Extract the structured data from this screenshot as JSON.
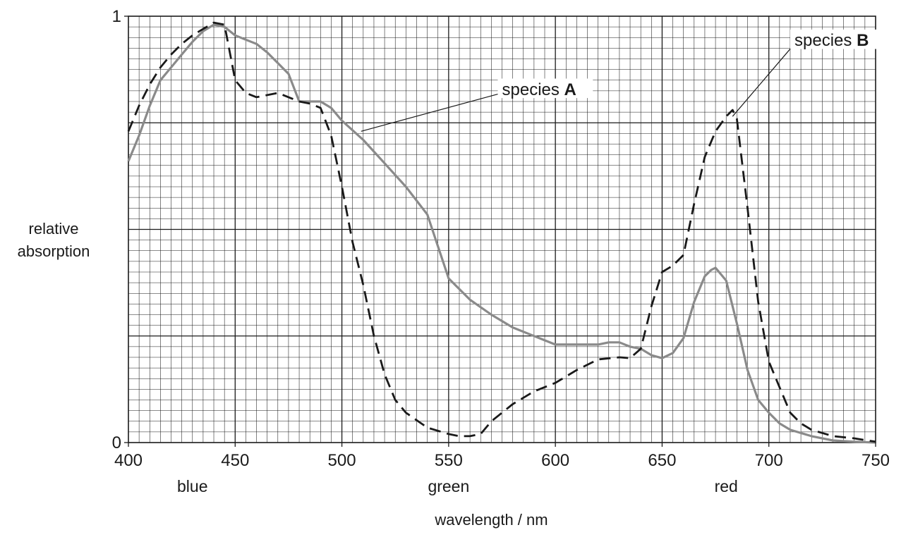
{
  "chart_data": {
    "type": "line",
    "xlabel": "wavelength / nm",
    "ylabel_lines": [
      "relative",
      "absorption"
    ],
    "xlim": [
      400,
      750
    ],
    "ylim": [
      0,
      1
    ],
    "x_ticks": [
      400,
      450,
      500,
      550,
      600,
      650,
      700,
      750
    ],
    "y_ticks": [
      {
        "value": 0,
        "label": "0"
      },
      {
        "value": 1,
        "label": "1"
      }
    ],
    "color_bands": [
      {
        "label": "blue",
        "x": 430
      },
      {
        "label": "green",
        "x": 550
      },
      {
        "label": "red",
        "x": 680
      }
    ],
    "grid": {
      "major_x": 50,
      "minor_x": 5,
      "major_y": 0.25,
      "minor_y": 0.025
    },
    "series": [
      {
        "id": "A",
        "label_prefix": "species ",
        "label_bold": "A",
        "color": "#8a8a8a",
        "dash": "solid",
        "x": [
          400,
          405,
          410,
          415,
          420,
          425,
          430,
          435,
          440,
          445,
          450,
          455,
          460,
          465,
          470,
          475,
          480,
          485,
          490,
          495,
          500,
          510,
          520,
          530,
          540,
          550,
          560,
          570,
          580,
          590,
          600,
          605,
          610,
          620,
          625,
          630,
          635,
          640,
          645,
          650,
          655,
          660,
          665,
          670,
          673,
          675,
          680,
          685,
          690,
          695,
          700,
          705,
          710,
          720,
          730,
          740,
          750
        ],
        "y": [
          0.66,
          0.72,
          0.79,
          0.85,
          0.88,
          0.91,
          0.94,
          0.965,
          0.98,
          0.975,
          0.955,
          0.945,
          0.935,
          0.915,
          0.89,
          0.865,
          0.8,
          0.8,
          0.8,
          0.785,
          0.755,
          0.71,
          0.655,
          0.6,
          0.535,
          0.385,
          0.335,
          0.3,
          0.27,
          0.25,
          0.23,
          0.23,
          0.23,
          0.23,
          0.235,
          0.235,
          0.225,
          0.22,
          0.205,
          0.198,
          0.21,
          0.245,
          0.33,
          0.39,
          0.405,
          0.41,
          0.38,
          0.28,
          0.17,
          0.1,
          0.07,
          0.045,
          0.03,
          0.015,
          0.005,
          0.002,
          0.0
        ]
      },
      {
        "id": "B",
        "label_prefix": "species ",
        "label_bold": "B",
        "color": "#1a1a1a",
        "dash": "dashed",
        "x": [
          400,
          405,
          410,
          415,
          420,
          425,
          430,
          435,
          440,
          445,
          450,
          455,
          460,
          465,
          470,
          475,
          480,
          485,
          490,
          495,
          500,
          505,
          510,
          515,
          520,
          525,
          530,
          540,
          550,
          555,
          560,
          565,
          570,
          580,
          590,
          600,
          610,
          620,
          630,
          635,
          640,
          645,
          650,
          655,
          660,
          665,
          670,
          675,
          680,
          683,
          685,
          690,
          695,
          700,
          705,
          710,
          715,
          720,
          730,
          740,
          750
        ],
        "y": [
          0.73,
          0.79,
          0.84,
          0.88,
          0.91,
          0.935,
          0.955,
          0.97,
          0.985,
          0.98,
          0.85,
          0.82,
          0.81,
          0.815,
          0.82,
          0.81,
          0.8,
          0.795,
          0.785,
          0.72,
          0.6,
          0.47,
          0.37,
          0.25,
          0.16,
          0.1,
          0.07,
          0.035,
          0.02,
          0.015,
          0.015,
          0.02,
          0.05,
          0.09,
          0.12,
          0.14,
          0.17,
          0.195,
          0.2,
          0.198,
          0.22,
          0.32,
          0.4,
          0.415,
          0.44,
          0.56,
          0.67,
          0.73,
          0.765,
          0.78,
          0.76,
          0.55,
          0.33,
          0.19,
          0.13,
          0.07,
          0.045,
          0.03,
          0.015,
          0.01,
          0.002
        ]
      }
    ],
    "annotations": [
      {
        "series": "A",
        "point": [
          509,
          0.73
        ],
        "label_anchor": [
          575,
          0.82
        ]
      },
      {
        "series": "B",
        "point": [
          683,
          0.765
        ],
        "label_anchor": [
          712,
          0.935
        ]
      }
    ]
  }
}
